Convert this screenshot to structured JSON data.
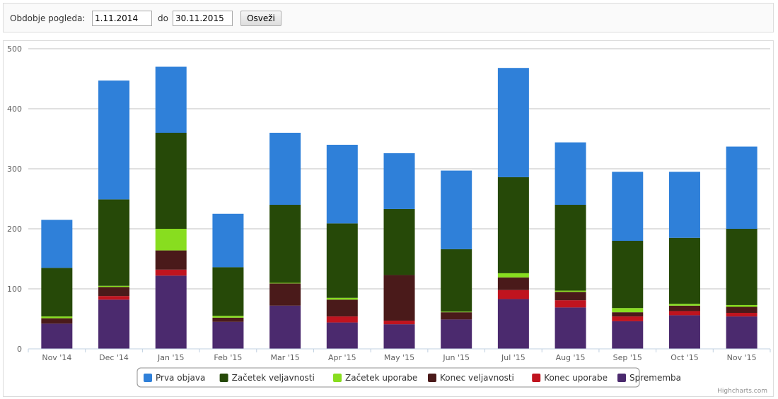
{
  "filter": {
    "period_label": "Obdobje pogleda:",
    "from_value": "1.11.2014",
    "to_label": "do",
    "to_value": "30.11.2015",
    "refresh_label": "Osveži"
  },
  "chart_data": {
    "type": "bar",
    "stacked": true,
    "categories": [
      "Nov '14",
      "Dec '14",
      "Jan '15",
      "Feb '15",
      "Mar '15",
      "Apr '15",
      "May '15",
      "Jun '15",
      "Jul '15",
      "Aug '15",
      "Sep '15",
      "Oct '15",
      "Nov '15"
    ],
    "ylim": [
      0,
      500
    ],
    "yticks": [
      0,
      100,
      200,
      300,
      400,
      500
    ],
    "grid": true,
    "legend_placement": "bottom-center",
    "series": [
      {
        "name": "Sprememba",
        "color": "#4b2a6e",
        "values": [
          42,
          82,
          122,
          45,
          72,
          44,
          41,
          49,
          83,
          69,
          46,
          56,
          54
        ]
      },
      {
        "name": "Konec uporabe",
        "color": "#c0141f",
        "values": [
          0,
          6,
          10,
          0,
          0,
          10,
          6,
          0,
          15,
          12,
          8,
          7,
          6
        ]
      },
      {
        "name": "Konec veljavnosti",
        "color": "#4a1a1a",
        "values": [
          9,
          15,
          32,
          7,
          37,
          28,
          76,
          12,
          21,
          14,
          7,
          9,
          10
        ]
      },
      {
        "name": "Začetek uporabe",
        "color": "#88dd1f",
        "values": [
          3,
          2,
          36,
          3,
          1,
          3,
          0,
          1,
          7,
          2,
          7,
          3,
          3
        ]
      },
      {
        "name": "Začetek veljavnosti",
        "color": "#264908",
        "values": [
          81,
          144,
          160,
          81,
          130,
          124,
          110,
          104,
          160,
          143,
          112,
          110,
          127
        ]
      },
      {
        "name": "Prva objava",
        "color": "#2f80d9",
        "values": [
          80,
          198,
          110,
          89,
          120,
          131,
          93,
          131,
          182,
          104,
          115,
          110,
          137
        ]
      }
    ],
    "legend_order": [
      "Prva objava",
      "Začetek veljavnosti",
      "Začetek uporabe",
      "Konec veljavnosti",
      "Konec uporabe",
      "Sprememba"
    ],
    "credits": "Highcharts.com"
  }
}
